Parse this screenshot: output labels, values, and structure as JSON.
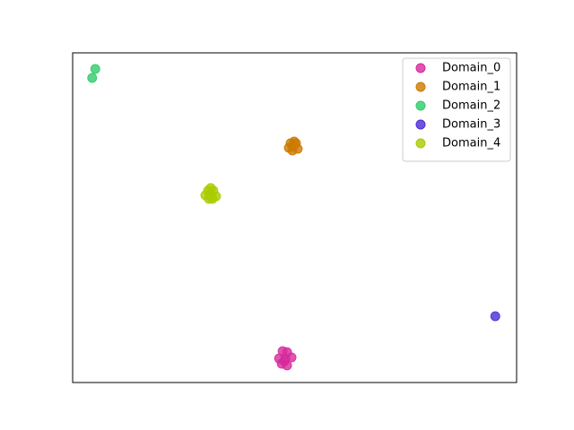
{
  "chart_data": {
    "type": "scatter",
    "xlim": [
      0,
      100
    ],
    "ylim": [
      0,
      100
    ],
    "legend": "upper right",
    "series": [
      {
        "name": "Domain_0",
        "color": "#d62a9c",
        "x": [
          47.3,
          48.3,
          46.5,
          47.9,
          49.3,
          47.1,
          48.3,
          47.7
        ],
        "values": [
          9.5,
          9.2,
          7.3,
          7.3,
          7.6,
          5.7,
          5.2,
          6.5
        ]
      },
      {
        "name": "Domain_1",
        "color": "#cc7a00",
        "x": [
          49.1,
          50.3,
          48.7,
          49.7,
          50.7,
          49.5,
          49.9
        ],
        "values": [
          72.6,
          72.6,
          71.2,
          71.7,
          70.9,
          70.4,
          73.1
        ]
      },
      {
        "name": "Domain_2",
        "color": "#2ecc6a",
        "x": [
          5.1,
          4.4
        ],
        "values": [
          95.1,
          92.4
        ]
      },
      {
        "name": "Domain_3",
        "color": "#4b2bd6",
        "x": [
          95.2
        ],
        "values": [
          20.1
        ]
      },
      {
        "name": "Domain_4",
        "color": "#a8cc00",
        "x": [
          30.5,
          31.7,
          29.9,
          31.1,
          32.3,
          30.7,
          31.5,
          31.1
        ],
        "values": [
          58.2,
          58.2,
          56.8,
          57.1,
          56.5,
          55.7,
          55.7,
          59.0
        ]
      }
    ]
  }
}
